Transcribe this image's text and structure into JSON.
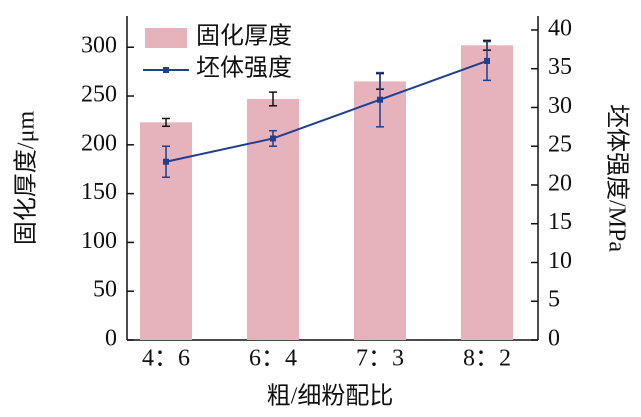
{
  "chart_data": {
    "type": "bar",
    "x_label": "粗/细粉配比",
    "y_label": "固化厚度/μm",
    "y2_label": "坯体强度/MPa",
    "categories": [
      "4：6",
      "6：4",
      "7：3",
      "8：2"
    ],
    "series": [
      {
        "name": "固化厚度",
        "type": "bar",
        "color": "#e6b3bc",
        "values": [
          223,
          247,
          265,
          302
        ],
        "errors": [
          4,
          7,
          8,
          5
        ]
      },
      {
        "name": "坯体强度",
        "type": "line",
        "axis": "y2",
        "color": "#1f3f8f",
        "values": [
          23,
          26,
          31,
          36
        ],
        "errors": [
          2,
          1,
          3.5,
          2.5
        ]
      }
    ],
    "ylim": [
      0,
      332
    ],
    "yticks": [
      0,
      50,
      100,
      150,
      200,
      250,
      300
    ],
    "y2lim": [
      0,
      41.8
    ],
    "y2ticks": [
      0,
      5,
      10,
      15,
      20,
      25,
      30,
      35,
      40
    ],
    "legend": "upper-left"
  }
}
